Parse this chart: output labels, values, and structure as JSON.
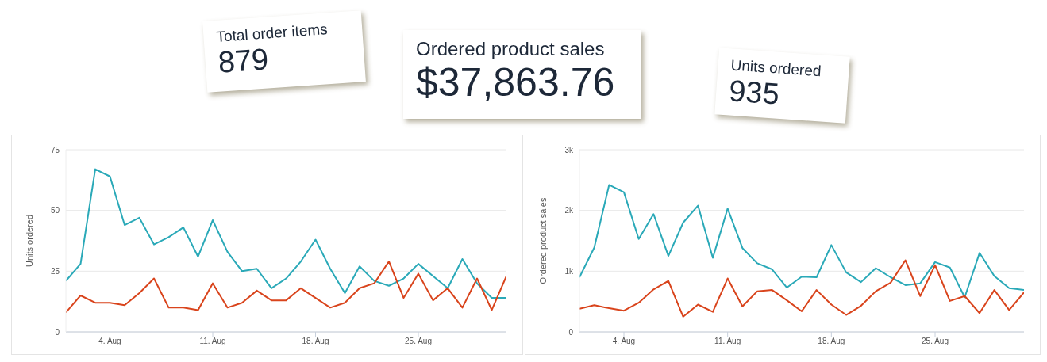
{
  "chart_data": [
    {
      "type": "other",
      "title": "Total order items",
      "annotations": [
        "879"
      ]
    },
    {
      "type": "other",
      "title": "Ordered product sales",
      "annotations": [
        "$37,863.76"
      ]
    },
    {
      "type": "other",
      "title": "Units ordered",
      "annotations": [
        "935"
      ]
    },
    {
      "type": "line",
      "ylabel": "Units ordered",
      "x": [
        "--08-01",
        "--08-02",
        "--08-03",
        "--08-04",
        "--08-05",
        "--08-06",
        "--08-07",
        "--08-08",
        "--08-09",
        "--08-10",
        "--08-11",
        "--08-12",
        "--08-13",
        "--08-14",
        "--08-15",
        "--08-16",
        "--08-17",
        "--08-18",
        "--08-19",
        "--08-20",
        "--08-21",
        "--08-22",
        "--08-23",
        "--08-24",
        "--08-25",
        "--08-26",
        "--08-27",
        "--08-28",
        "--08-29",
        "--08-30",
        "--08-31"
      ],
      "xlim": [
        "--08-01",
        "--08-31"
      ],
      "xticks": [
        {
          "value": "--08-04",
          "label": "4. Aug"
        },
        {
          "value": "--08-11",
          "label": "11. Aug"
        },
        {
          "value": "--08-18",
          "label": "18. Aug"
        },
        {
          "value": "--08-25",
          "label": "25. Aug"
        }
      ],
      "ylim": [
        0,
        75
      ],
      "yticks": [
        0,
        25,
        50,
        75
      ],
      "grid": "y",
      "series": [
        {
          "color": "#2aa9b8",
          "values": [
            21,
            28,
            67,
            64,
            44,
            47,
            36,
            39,
            43,
            31,
            46,
            33,
            25,
            26,
            18,
            22,
            29,
            38,
            26,
            16,
            27,
            21,
            19,
            22,
            28,
            23,
            18,
            30,
            20,
            14,
            14
          ]
        },
        {
          "color": "#d9441c",
          "values": [
            8,
            15,
            12,
            12,
            11,
            16,
            22,
            10,
            10,
            9,
            20,
            10,
            12,
            17,
            13,
            13,
            18,
            14,
            10,
            12,
            18,
            20,
            29,
            14,
            24,
            13,
            18,
            10,
            22,
            9,
            23
          ]
        }
      ]
    },
    {
      "type": "line",
      "ylabel": "Ordered product sales",
      "x": [
        "--08-01",
        "--08-02",
        "--08-03",
        "--08-04",
        "--08-05",
        "--08-06",
        "--08-07",
        "--08-08",
        "--08-09",
        "--08-10",
        "--08-11",
        "--08-12",
        "--08-13",
        "--08-14",
        "--08-15",
        "--08-16",
        "--08-17",
        "--08-18",
        "--08-19",
        "--08-20",
        "--08-21",
        "--08-22",
        "--08-23",
        "--08-24",
        "--08-25",
        "--08-26",
        "--08-27",
        "--08-28",
        "--08-29",
        "--08-30",
        "--08-31"
      ],
      "xlim": [
        "--08-01",
        "--08-31"
      ],
      "xticks": [
        {
          "value": "--08-04",
          "label": "4. Aug"
        },
        {
          "value": "--08-11",
          "label": "11. Aug"
        },
        {
          "value": "--08-18",
          "label": "18. Aug"
        },
        {
          "value": "--08-25",
          "label": "25. Aug"
        }
      ],
      "ylim": [
        0,
        3000
      ],
      "yticks": [
        0,
        {
          "value": 1000,
          "label": "1k"
        },
        {
          "value": 2000,
          "label": "2k"
        },
        {
          "value": 3000,
          "label": "3k"
        }
      ],
      "grid": "y",
      "series": [
        {
          "color": "#2aa9b8",
          "values": [
            900,
            1390,
            2420,
            2300,
            1530,
            1940,
            1250,
            1800,
            2080,
            1220,
            2030,
            1380,
            1130,
            1030,
            730,
            910,
            900,
            1430,
            980,
            820,
            1050,
            900,
            770,
            800,
            1150,
            1060,
            570,
            1300,
            920,
            720,
            690
          ]
        },
        {
          "color": "#d9441c",
          "values": [
            380,
            440,
            390,
            350,
            480,
            700,
            840,
            250,
            450,
            330,
            880,
            420,
            670,
            690,
            520,
            340,
            690,
            450,
            280,
            430,
            670,
            810,
            1180,
            590,
            1100,
            510,
            590,
            310,
            690,
            360,
            650
          ]
        }
      ]
    }
  ]
}
